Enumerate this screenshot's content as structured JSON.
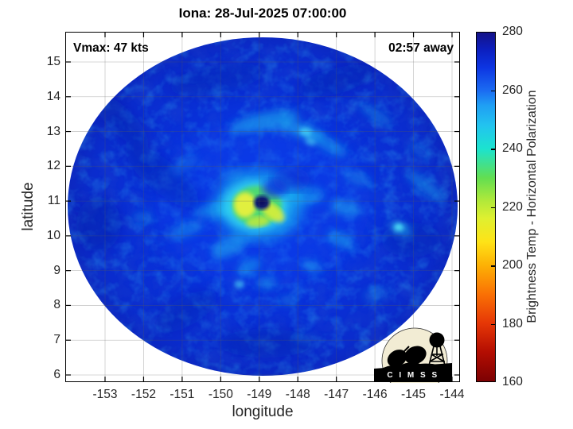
{
  "title": "Iona: 28-Jul-2025 07:00:00",
  "overlays": {
    "vmax_label": "Vmax: 47 kts",
    "countdown_label": "02:57 away"
  },
  "x_axis": {
    "label": "longitude",
    "ticks": [
      -153,
      -152,
      -151,
      -150,
      -149,
      -148,
      -147,
      -146,
      -145,
      -144
    ]
  },
  "y_axis": {
    "label": "latitude",
    "ticks": [
      15,
      14,
      13,
      12,
      11,
      10,
      9,
      8,
      7,
      6
    ]
  },
  "colorbar": {
    "label": "Brightness Temp - Horizontal Polarization",
    "ticks": [
      280,
      260,
      240,
      220,
      200,
      180,
      160
    ],
    "min": 160,
    "max": 280
  },
  "logo": {
    "text": "C I M S S"
  },
  "chart_data": {
    "type": "heatmap",
    "title": "Iona: 28-Jul-2025 07:00:00",
    "xlabel": "longitude",
    "ylabel": "latitude",
    "xlim": [
      -154.05,
      -143.8
    ],
    "ylim": [
      5.8,
      15.87
    ],
    "xticks": [
      -153,
      -152,
      -151,
      -150,
      -149,
      -148,
      -147,
      -146,
      -145,
      -144
    ],
    "yticks": [
      6,
      7,
      8,
      9,
      10,
      11,
      12,
      13,
      14,
      15
    ],
    "grid": true,
    "legend_position": "none",
    "colorbar": {
      "label": "Brightness Temp - Horizontal Polarization",
      "range": [
        160,
        280
      ],
      "ticks": [
        160,
        180,
        200,
        220,
        240,
        260,
        280
      ],
      "colormap_low_to_high": [
        "#7c0103",
        "#e63706",
        "#fdb105",
        "#fee317",
        "#b2e93a",
        "#63de51",
        "#1ce3cf",
        "#22c4ef",
        "#1b6cf2",
        "#0d35e2",
        "#141288"
      ]
    },
    "storm": {
      "name": "Iona",
      "datetime": "28-Jul-2025 07:00:00",
      "vmax_kts": 47,
      "time_until_observation": "02:57",
      "eye_longitude": -148.9,
      "eye_latitude": 11.0
    },
    "swath": {
      "shape": "circular",
      "center_longitude": -148.9,
      "center_latitude": 10.85,
      "radius_deg_longitude": 5.05,
      "radius_deg_latitude": 4.9,
      "background_brightness_temp_K": 265
    },
    "features": [
      {
        "name": "eye",
        "longitude": -148.9,
        "latitude": 11.0,
        "brightness_temp_K": 276
      },
      {
        "name": "eyewall-convection-west",
        "longitude": -149.4,
        "latitude": 10.9,
        "brightness_temp_K": 207
      },
      {
        "name": "eyewall-convection-southeast",
        "longitude": -148.7,
        "latitude": 10.6,
        "brightness_temp_K": 212
      },
      {
        "name": "spiral-band-north",
        "longitude": -148.8,
        "latitude": 13.3,
        "brightness_temp_K": 242
      },
      {
        "name": "spiral-band-west",
        "longitude": -150.7,
        "latitude": 10.8,
        "brightness_temp_K": 248
      },
      {
        "name": "spiral-band-southeast",
        "longitude": -145.2,
        "latitude": 10.3,
        "brightness_temp_K": 244
      }
    ]
  }
}
